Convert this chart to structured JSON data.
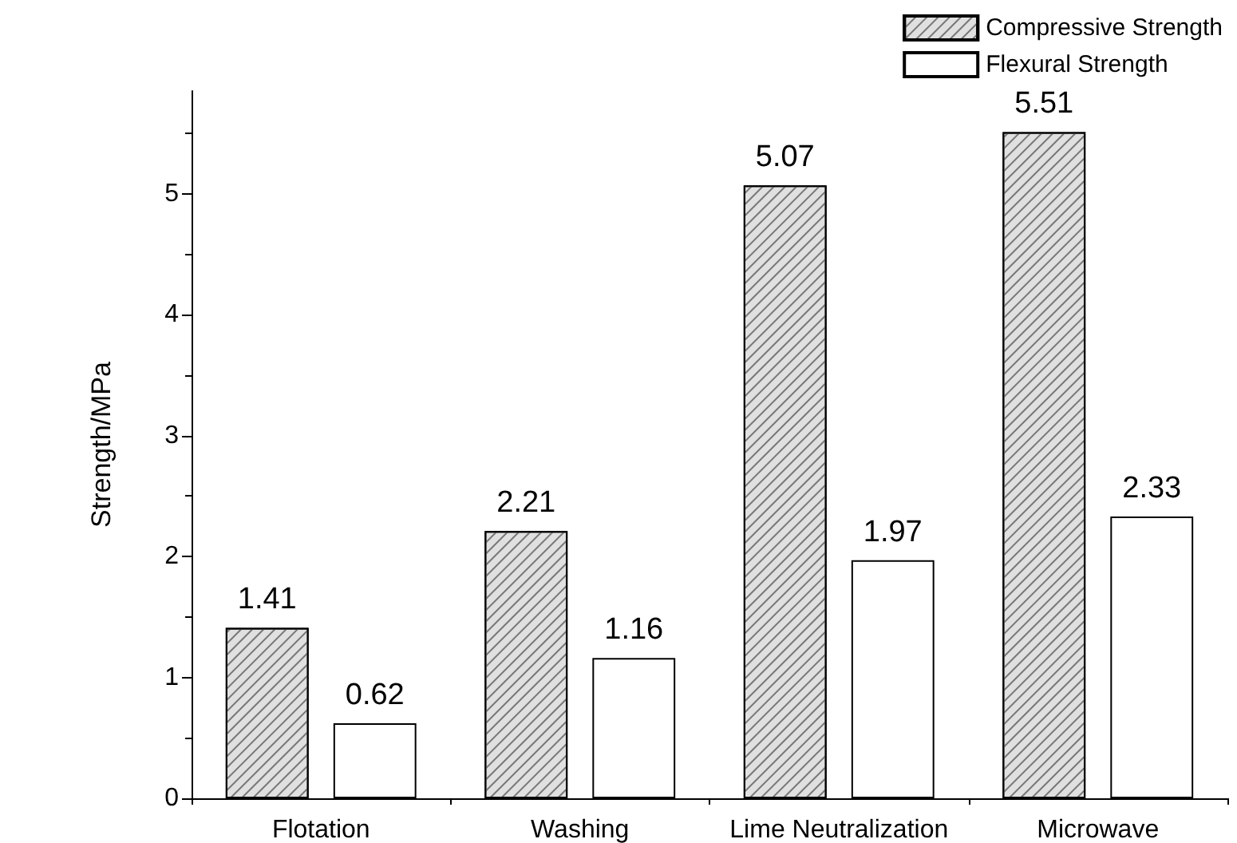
{
  "chart_data": {
    "type": "bar",
    "ylabel": "Strength/MPa",
    "categories": [
      "Flotation",
      "Washing",
      "Lime Neutralization",
      "Microwave"
    ],
    "series": [
      {
        "name": "Compressive Strength",
        "color": "#e0e0e0",
        "values": [
          1.41,
          2.21,
          5.07,
          5.51
        ]
      },
      {
        "name": "Flexural Strength",
        "color": "#ffffff",
        "values": [
          0.62,
          1.16,
          1.97,
          2.33
        ]
      }
    ],
    "ylim": [
      0,
      5.85
    ],
    "yticks": [
      0,
      1,
      2,
      3,
      4,
      5
    ],
    "data_labels": true,
    "legend": "top right",
    "grid": false
  }
}
